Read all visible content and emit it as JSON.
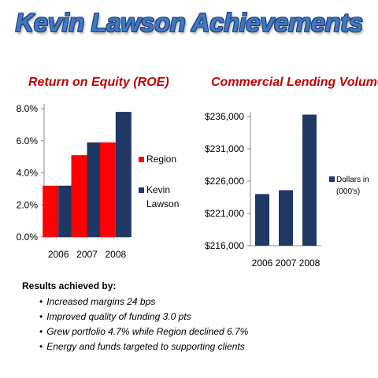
{
  "page": {
    "title": "Kevin Lawson Achievements"
  },
  "chart_data": [
    {
      "type": "bar",
      "title": "Return on Equity (ROE)",
      "categories": [
        "2006",
        "2007",
        "2008"
      ],
      "series": [
        {
          "name": "Region",
          "values": [
            3.2,
            5.1,
            5.9
          ],
          "color": "#ff0000"
        },
        {
          "name": "Kevin Lawson",
          "values": [
            3.2,
            5.9,
            7.8
          ],
          "color": "#1f3864"
        }
      ],
      "ylim": [
        0,
        8
      ],
      "yticks": [
        "0.0%",
        "2.0%",
        "4.0%",
        "6.0%",
        "8.0%"
      ],
      "legend": "right",
      "grid": false
    },
    {
      "type": "bar",
      "title": "Commercial Lending Volume",
      "categories": [
        "2006",
        "2007",
        "2008"
      ],
      "series": [
        {
          "name": "Dollars in (000's)",
          "values": [
            224000,
            224600,
            236300
          ],
          "color": "#1f3864"
        }
      ],
      "ylim": [
        216000,
        236000
      ],
      "yticks": [
        "$216,000",
        "$221,000",
        "$226,000",
        "$231,000",
        "$236,000"
      ],
      "legend": "right",
      "grid": false
    }
  ],
  "results": {
    "heading": "Results achieved by:",
    "items": [
      "Increased margins 24 bps",
      "Improved quality of funding 3.0 pts",
      "Grew portfolio 4.7% while Region declined 6.7%",
      "Energy and funds targeted to supporting clients"
    ]
  }
}
